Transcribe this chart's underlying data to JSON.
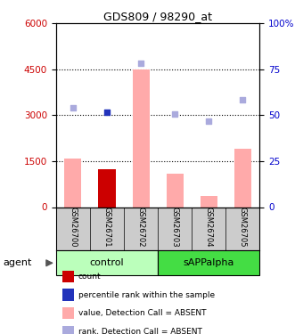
{
  "title": "GDS809 / 98290_at",
  "samples": [
    "GSM26700",
    "GSM26701",
    "GSM26702",
    "GSM26703",
    "GSM26704",
    "GSM26705"
  ],
  "bar_values": [
    1600,
    1250,
    4500,
    1100,
    350,
    1900
  ],
  "bar_colors": [
    "#ffaaaa",
    "#cc0000",
    "#ffaaaa",
    "#ffaaaa",
    "#ffaaaa",
    "#ffaaaa"
  ],
  "blue_square_values": [
    3250,
    3100,
    4700,
    3050,
    2800,
    3500
  ],
  "blue_square_colors": [
    "#aaaadd",
    "#2233bb",
    "#aaaadd",
    "#aaaadd",
    "#aaaadd",
    "#aaaadd"
  ],
  "ylim_left": [
    0,
    6000
  ],
  "ylim_right": [
    0,
    100
  ],
  "yticks_left": [
    0,
    1500,
    3000,
    4500,
    6000
  ],
  "yticks_right": [
    0,
    25,
    50,
    75,
    100
  ],
  "left_axis_color": "#cc0000",
  "right_axis_color": "#0000cc",
  "control_color": "#bbffbb",
  "sAPPalpha_color": "#44dd44",
  "xlab_bg": "#cccccc",
  "legend_items": [
    {
      "label": "count",
      "color": "#cc0000"
    },
    {
      "label": "percentile rank within the sample",
      "color": "#2233bb"
    },
    {
      "label": "value, Detection Call = ABSENT",
      "color": "#ffaaaa"
    },
    {
      "label": "rank, Detection Call = ABSENT",
      "color": "#aaaadd"
    }
  ]
}
